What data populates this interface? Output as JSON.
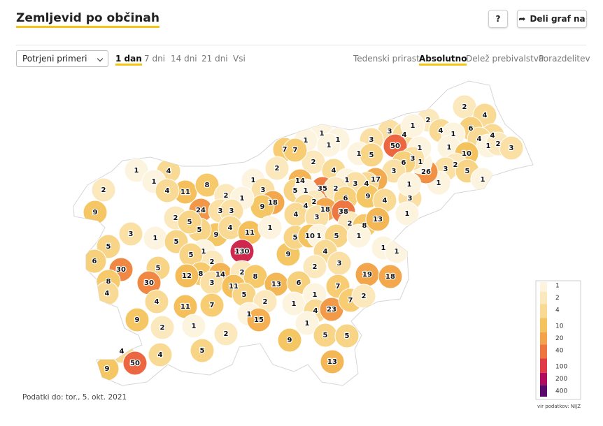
{
  "header": {
    "title": "Zemljevid po občinah",
    "help": "?",
    "share": "Deli graf na"
  },
  "controls": {
    "dropdown": "Potrjeni primeri",
    "periods": [
      "1 dan",
      "7 dni",
      "14 dni",
      "21 dni",
      "Vsi"
    ],
    "active_period": 0,
    "modes": [
      "Tedenski prirast",
      "Absolutno",
      "Delež prebivalstva",
      "Porazdelitev"
    ],
    "active_mode": 1
  },
  "chart_data": {
    "type": "choropleth",
    "values": [
      2,
      4,
      2,
      6,
      4,
      1,
      4,
      4,
      1,
      2,
      3,
      1,
      10,
      2,
      3,
      5,
      1,
      1,
      26,
      1,
      3,
      4,
      1,
      1,
      50,
      3,
      6,
      3,
      3,
      1,
      1,
      1,
      1,
      3,
      1,
      1,
      1,
      5,
      2,
      17,
      4,
      4,
      1,
      3,
      35,
      2,
      6,
      14,
      5,
      1,
      2,
      4,
      18,
      38,
      9,
      4,
      2,
      8,
      13,
      4,
      3,
      7,
      7,
      2,
      1,
      3,
      18,
      9,
      11,
      8,
      2,
      1,
      24,
      3,
      3,
      9,
      4,
      11,
      1,
      5,
      1,
      4,
      1,
      4,
      2,
      9,
      2,
      5,
      3,
      1,
      5,
      5,
      6,
      30,
      5,
      30,
      8,
      4,
      130,
      1,
      2,
      5,
      9,
      5,
      10,
      1,
      5,
      1,
      4,
      3,
      1,
      1,
      2,
      8,
      12,
      14,
      3,
      2,
      11,
      8,
      13,
      6,
      19,
      18,
      5,
      11,
      7,
      4,
      2,
      1,
      1,
      4,
      7,
      23,
      7,
      2,
      1,
      15,
      1,
      9,
      2,
      1,
      2,
      9,
      5,
      5,
      5,
      4,
      4,
      50,
      9,
      13
    ],
    "legend": {
      "ticks": [
        1,
        2,
        4,
        10,
        20,
        40,
        100,
        200,
        400
      ],
      "log": true,
      "colors": [
        "#fdf4e0",
        "#fbe8bd",
        "#f9da94",
        "#f5c35e",
        "#f3a34a",
        "#ee7440",
        "#e13a46",
        "#b20a5e",
        "#5a0a6a"
      ]
    },
    "source": "vir podatkov: NIJZ"
  },
  "footer": {
    "note": "Podatki do: tor., 5. okt. 2021"
  }
}
